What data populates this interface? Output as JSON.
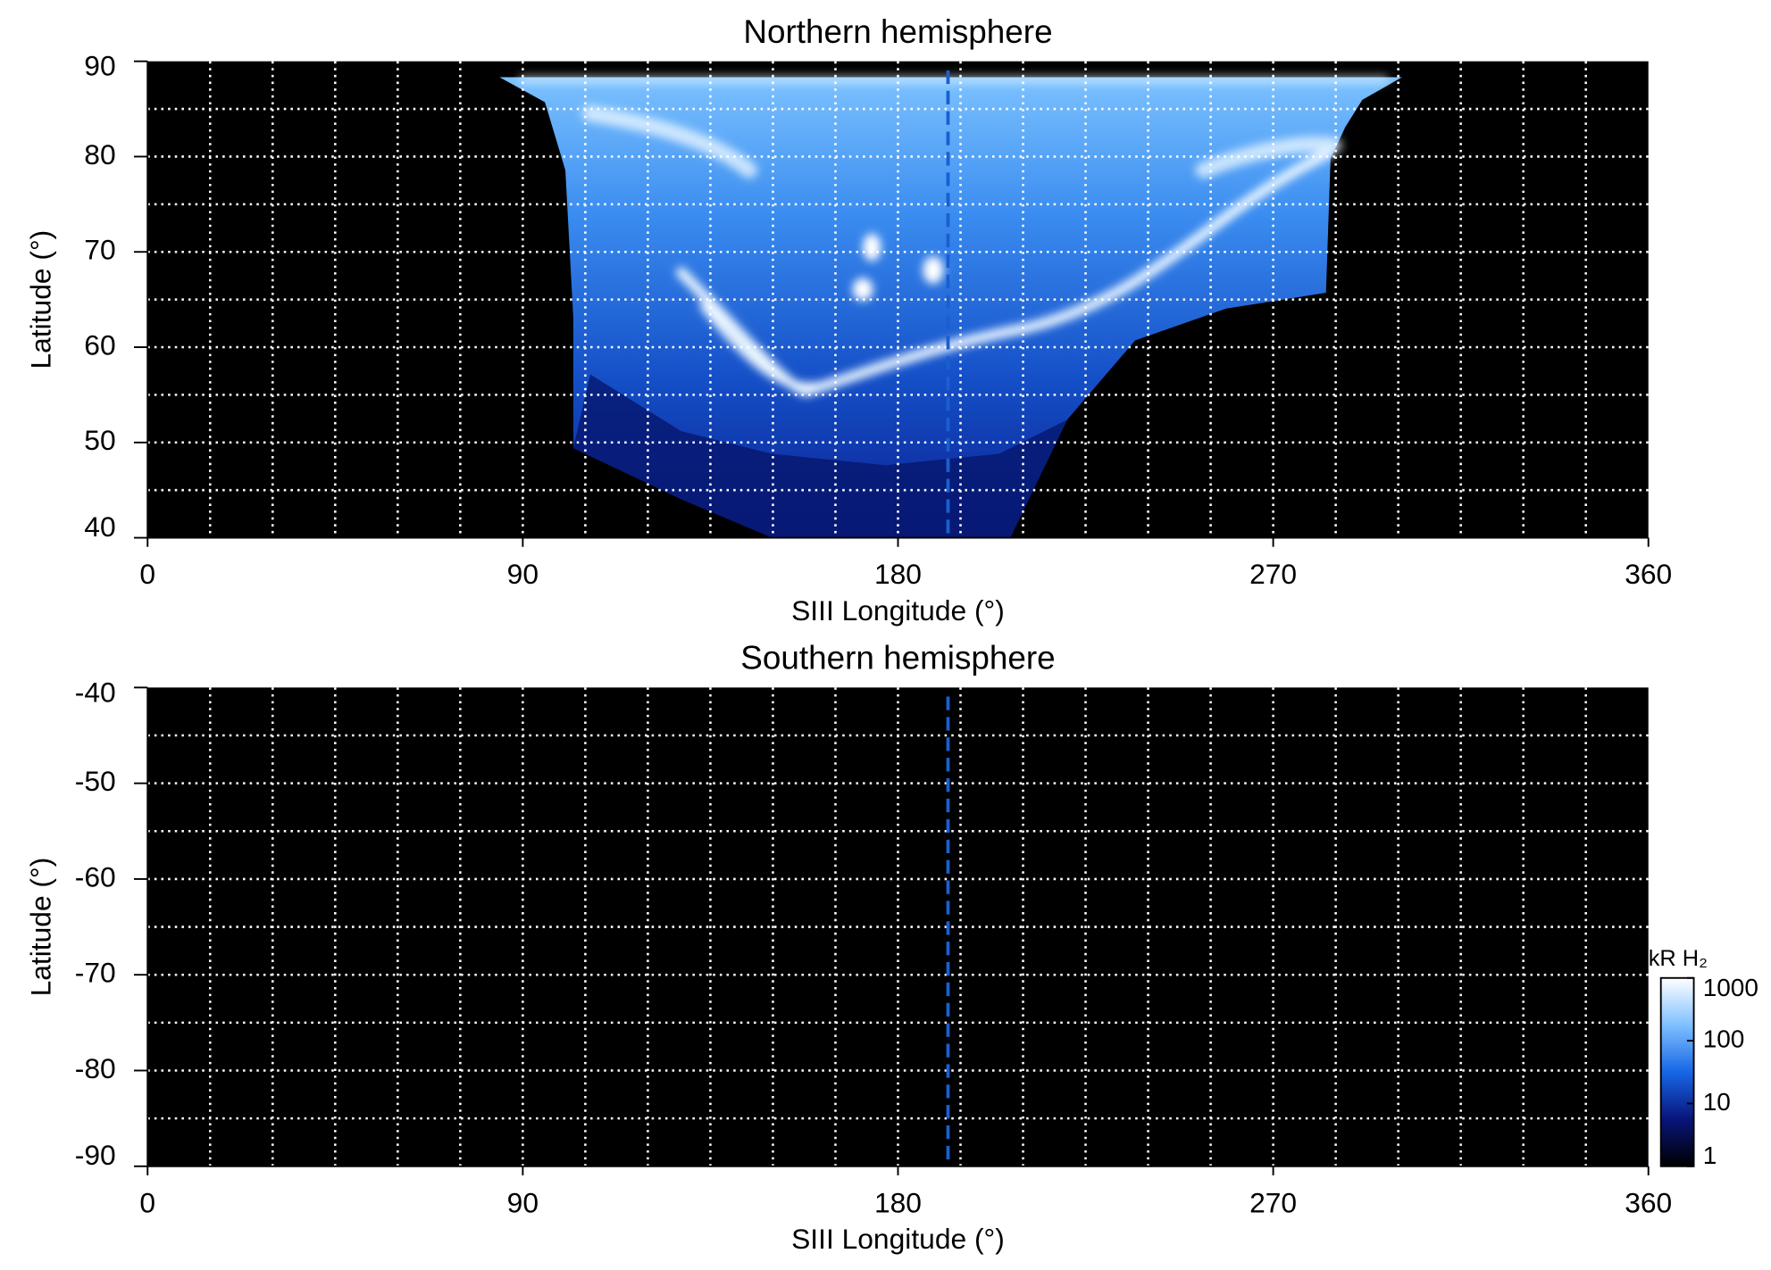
{
  "chart_data": [
    {
      "type": "heatmap",
      "title": "Northern hemisphere",
      "xlabel": "SIII Longitude (°)",
      "ylabel": "Latitude (°)",
      "xlim": [
        0,
        360
      ],
      "xticks": [
        0,
        90,
        180,
        270,
        360
      ],
      "xgrid": [
        15,
        30,
        45,
        60,
        75,
        90,
        105,
        120,
        135,
        150,
        165,
        180,
        195,
        210,
        225,
        240,
        255,
        270,
        285,
        300,
        315,
        330,
        345
      ],
      "ylim": [
        40,
        90
      ],
      "yticks": [
        40,
        50,
        60,
        70,
        80,
        90
      ],
      "ygrid": [
        45,
        50,
        55,
        60,
        65,
        70,
        75,
        80,
        85
      ],
      "reference_line": {
        "x": 192,
        "color": "#1a5fd0"
      }
    },
    {
      "type": "heatmap",
      "title": "Southern hemisphere",
      "xlabel": "SIII Longitude (°)",
      "ylabel": "Latitude (°)",
      "xlim": [
        0,
        360
      ],
      "xticks": [
        0,
        90,
        180,
        270,
        360
      ],
      "xgrid": [
        15,
        30,
        45,
        60,
        75,
        90,
        105,
        120,
        135,
        150,
        165,
        180,
        195,
        210,
        225,
        240,
        255,
        270,
        285,
        300,
        315,
        330,
        345
      ],
      "ylim": [
        -90,
        -40
      ],
      "yticks": [
        -90,
        -80,
        -70,
        -60,
        -50,
        -40
      ],
      "ygrid": [
        -85,
        -80,
        -75,
        -70,
        -65,
        -60,
        -55,
        -50,
        -45
      ],
      "reference_line": {
        "x": 192,
        "color": "#1a5fd0"
      },
      "colorbar": {
        "label": "kR H₂",
        "scale": "log",
        "lim": [
          1,
          1000
        ],
        "ticks": [
          1,
          10,
          100,
          1000
        ],
        "colors": [
          "#000000",
          "#08157a",
          "#1766e6",
          "#7fc0ff",
          "#ffffff"
        ]
      }
    }
  ]
}
